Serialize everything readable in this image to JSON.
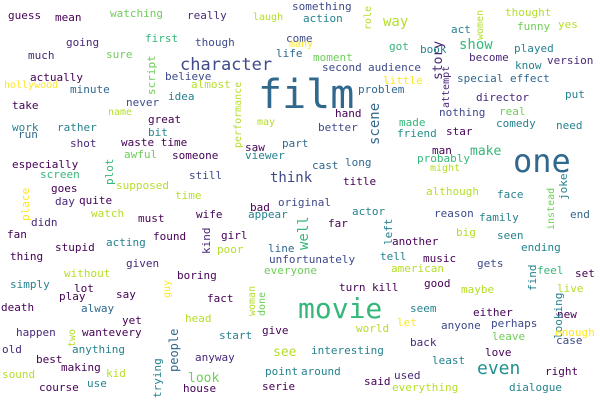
{
  "words": [
    {
      "text": "film",
      "color": "#31688e",
      "vertical": false
    },
    {
      "text": "one",
      "color": "#31688e",
      "vertical": false
    },
    {
      "text": "movie",
      "color": "#35b779",
      "vertical": false
    },
    {
      "text": "character",
      "color": "#3e4a89",
      "vertical": false
    },
    {
      "text": "even",
      "color": "#21918c",
      "vertical": false
    },
    {
      "text": "show",
      "color": "#35b779",
      "vertical": false
    },
    {
      "text": "scene",
      "color": "#31688e",
      "vertical": true
    },
    {
      "text": "story",
      "color": "#482878",
      "vertical": true
    },
    {
      "text": "way",
      "color": "#b5de2b",
      "vertical": false
    },
    {
      "text": "make",
      "color": "#35b779",
      "vertical": false
    },
    {
      "text": "think",
      "color": "#3e4a89",
      "vertical": false
    },
    {
      "text": "see",
      "color": "#b5de2b",
      "vertical": false
    },
    {
      "text": "look",
      "color": "#6ece58",
      "vertical": false
    },
    {
      "text": "well",
      "color": "#35b779",
      "vertical": true
    },
    {
      "text": "people",
      "color": "#31688e",
      "vertical": true
    },
    {
      "text": "guess",
      "color": "#440154",
      "vertical": false
    },
    {
      "text": "mean",
      "color": "#440154",
      "vertical": false
    },
    {
      "text": "watching",
      "color": "#6ece58",
      "vertical": false
    },
    {
      "text": "really",
      "color": "#482878",
      "vertical": false
    },
    {
      "text": "laugh",
      "color": "#b5de2b",
      "vertical": false
    },
    {
      "text": "something",
      "color": "#3e4a89",
      "vertical": false
    },
    {
      "text": "action",
      "color": "#26828e",
      "vertical": false
    },
    {
      "text": "role",
      "color": "#b5de2b",
      "vertical": true
    },
    {
      "text": "women",
      "color": "#b5de2b",
      "vertical": true
    },
    {
      "text": "thought",
      "color": "#b5de2b",
      "vertical": false
    },
    {
      "text": "funny",
      "color": "#6ece58",
      "vertical": false
    },
    {
      "text": "yes",
      "color": "#b5de2b",
      "vertical": false
    },
    {
      "text": "going",
      "color": "#482878",
      "vertical": false
    },
    {
      "text": "first",
      "color": "#35b779",
      "vertical": false
    },
    {
      "text": "though",
      "color": "#3e4a89",
      "vertical": false
    },
    {
      "text": "come",
      "color": "#3e4a89",
      "vertical": false
    },
    {
      "text": "many",
      "color": "#fde725",
      "vertical": false
    },
    {
      "text": "much",
      "color": "#482878",
      "vertical": false
    },
    {
      "text": "sure",
      "color": "#6ece58",
      "vertical": false
    },
    {
      "text": "life",
      "color": "#31688e",
      "vertical": false
    },
    {
      "text": "moment",
      "color": "#6ece58",
      "vertical": false
    },
    {
      "text": "got",
      "color": "#35b779",
      "vertical": false
    },
    {
      "text": "book",
      "color": "#26828e",
      "vertical": false
    },
    {
      "text": "act",
      "color": "#26828e",
      "vertical": false
    },
    {
      "text": "played",
      "color": "#26828e",
      "vertical": false
    },
    {
      "text": "become",
      "color": "#482878",
      "vertical": false
    },
    {
      "text": "version",
      "color": "#482878",
      "vertical": false
    },
    {
      "text": "script",
      "color": "#6ece58",
      "vertical": true
    },
    {
      "text": "second",
      "color": "#3e4a89",
      "vertical": false
    },
    {
      "text": "audience",
      "color": "#3e4a89",
      "vertical": false
    },
    {
      "text": "know",
      "color": "#26828e",
      "vertical": false
    },
    {
      "text": "actually",
      "color": "#440154",
      "vertical": false
    },
    {
      "text": "believe",
      "color": "#3e4a89",
      "vertical": false
    },
    {
      "text": "little",
      "color": "#fde725",
      "vertical": false
    },
    {
      "text": "attempt",
      "color": "#482878",
      "vertical": true
    },
    {
      "text": "special effect",
      "color": "#31688e",
      "vertical": false
    },
    {
      "text": "hollywood",
      "color": "#fde725",
      "vertical": false
    },
    {
      "text": "minute",
      "color": "#31688e",
      "vertical": false
    },
    {
      "text": "almost",
      "color": "#b5de2b",
      "vertical": false
    },
    {
      "text": "problem",
      "color": "#31688e",
      "vertical": false
    },
    {
      "text": "put",
      "color": "#26828e",
      "vertical": false
    },
    {
      "text": "idea",
      "color": "#26828e",
      "vertical": false
    },
    {
      "text": "director",
      "color": "#482878",
      "vertical": false
    },
    {
      "text": "take",
      "color": "#440154",
      "vertical": false
    },
    {
      "text": "never",
      "color": "#3e4a89",
      "vertical": false
    },
    {
      "text": "name",
      "color": "#b5de2b",
      "vertical": false
    },
    {
      "text": "hand",
      "color": "#440154",
      "vertical": false
    },
    {
      "text": "nothing",
      "color": "#3e4a89",
      "vertical": false
    },
    {
      "text": "real",
      "color": "#6ece58",
      "vertical": false
    },
    {
      "text": "great",
      "color": "#440154",
      "vertical": false
    },
    {
      "text": "may",
      "color": "#b5de2b",
      "vertical": false
    },
    {
      "text": "made",
      "color": "#35b779",
      "vertical": false
    },
    {
      "text": "comedy",
      "color": "#26828e",
      "vertical": false
    },
    {
      "text": "need",
      "color": "#26828e",
      "vertical": false
    },
    {
      "text": "work",
      "color": "#26828e",
      "vertical": false
    },
    {
      "text": "rather",
      "color": "#26828e",
      "vertical": false
    },
    {
      "text": "bit",
      "color": "#26828e",
      "vertical": false
    },
    {
      "text": "run",
      "color": "#31688e",
      "vertical": false
    },
    {
      "text": "better",
      "color": "#3e4a89",
      "vertical": false
    },
    {
      "text": "star",
      "color": "#440154",
      "vertical": false
    },
    {
      "text": "friend",
      "color": "#21918c",
      "vertical": false
    },
    {
      "text": "performance",
      "color": "#b5de2b",
      "vertical": true
    },
    {
      "text": "shot",
      "color": "#482878",
      "vertical": false
    },
    {
      "text": "waste time",
      "color": "#440154",
      "vertical": false
    },
    {
      "text": "part",
      "color": "#31688e",
      "vertical": false
    },
    {
      "text": "cast",
      "color": "#31688e",
      "vertical": false
    },
    {
      "text": "man",
      "color": "#440154",
      "vertical": false
    },
    {
      "text": "awful",
      "color": "#6ece58",
      "vertical": false
    },
    {
      "text": "someone",
      "color": "#440154",
      "vertical": false
    },
    {
      "text": "saw",
      "color": "#440154",
      "vertical": false
    },
    {
      "text": "long",
      "color": "#31688e",
      "vertical": false
    },
    {
      "text": "probably",
      "color": "#35b779",
      "vertical": false
    },
    {
      "text": "especially",
      "color": "#440154",
      "vertical": false
    },
    {
      "text": "viewer",
      "color": "#26828e",
      "vertical": false
    },
    {
      "text": "might",
      "color": "#b5de2b",
      "vertical": false
    },
    {
      "text": "screen",
      "color": "#35b779",
      "vertical": false
    },
    {
      "text": "plot",
      "color": "#35b779",
      "vertical": true
    },
    {
      "text": "still",
      "color": "#3e4a89",
      "vertical": false
    },
    {
      "text": "title",
      "color": "#440154",
      "vertical": false
    },
    {
      "text": "face",
      "color": "#26828e",
      "vertical": false
    },
    {
      "text": "joke",
      "color": "#26828e",
      "vertical": true
    },
    {
      "text": "goes",
      "color": "#440154",
      "vertical": false
    },
    {
      "text": "supposed",
      "color": "#b5de2b",
      "vertical": false
    },
    {
      "text": "although",
      "color": "#b5de2b",
      "vertical": false
    },
    {
      "text": "place",
      "color": "#fde725",
      "vertical": true
    },
    {
      "text": "day",
      "color": "#482878",
      "vertical": false
    },
    {
      "text": "quite",
      "color": "#440154",
      "vertical": false
    },
    {
      "text": "time",
      "color": "#b5de2b",
      "vertical": false
    },
    {
      "text": "bad",
      "color": "#440154",
      "vertical": false
    },
    {
      "text": "original",
      "color": "#3e4a89",
      "vertical": false
    },
    {
      "text": "instead",
      "color": "#6ece58",
      "vertical": true
    },
    {
      "text": "end",
      "color": "#31688e",
      "vertical": false
    },
    {
      "text": "didn",
      "color": "#482878",
      "vertical": false
    },
    {
      "text": "watch",
      "color": "#b5de2b",
      "vertical": false
    },
    {
      "text": "must",
      "color": "#440154",
      "vertical": false
    },
    {
      "text": "wife",
      "color": "#440154",
      "vertical": false
    },
    {
      "text": "appear",
      "color": "#26828e",
      "vertical": false
    },
    {
      "text": "far",
      "color": "#440154",
      "vertical": false
    },
    {
      "text": "actor",
      "color": "#26828e",
      "vertical": false
    },
    {
      "text": "reason",
      "color": "#3e4a89",
      "vertical": false
    },
    {
      "text": "family",
      "color": "#26828e",
      "vertical": false
    },
    {
      "text": "big",
      "color": "#b5de2b",
      "vertical": false
    },
    {
      "text": "fan",
      "color": "#440154",
      "vertical": false
    },
    {
      "text": "kind",
      "color": "#482878",
      "vertical": true
    },
    {
      "text": "found",
      "color": "#440154",
      "vertical": false
    },
    {
      "text": "girl",
      "color": "#440154",
      "vertical": false
    },
    {
      "text": "left",
      "color": "#26828e",
      "vertical": true
    },
    {
      "text": "another",
      "color": "#440154",
      "vertical": false
    },
    {
      "text": "seen",
      "color": "#26828e",
      "vertical": false
    },
    {
      "text": "stupid",
      "color": "#440154",
      "vertical": false
    },
    {
      "text": "acting",
      "color": "#26828e",
      "vertical": false
    },
    {
      "text": "poor",
      "color": "#b5de2b",
      "vertical": false
    },
    {
      "text": "line",
      "color": "#31688e",
      "vertical": false
    },
    {
      "text": "ending",
      "color": "#26828e",
      "vertical": false
    },
    {
      "text": "thing",
      "color": "#440154",
      "vertical": false
    },
    {
      "text": "given",
      "color": "#482878",
      "vertical": false
    },
    {
      "text": "unfortunately",
      "color": "#3e4a89",
      "vertical": false
    },
    {
      "text": "tell",
      "color": "#26828e",
      "vertical": false
    },
    {
      "text": "music",
      "color": "#440154",
      "vertical": false
    },
    {
      "text": "gets",
      "color": "#3e4a89",
      "vertical": false
    },
    {
      "text": "set",
      "color": "#440154",
      "vertical": false
    },
    {
      "text": "everyone",
      "color": "#6ece58",
      "vertical": false
    },
    {
      "text": "american",
      "color": "#b5de2b",
      "vertical": false
    },
    {
      "text": "feel",
      "color": "#35b779",
      "vertical": false
    },
    {
      "text": "without",
      "color": "#b5de2b",
      "vertical": false
    },
    {
      "text": "boring",
      "color": "#440154",
      "vertical": false
    },
    {
      "text": "simply",
      "color": "#26828e",
      "vertical": false
    },
    {
      "text": "lot",
      "color": "#440154",
      "vertical": false
    },
    {
      "text": "guy",
      "color": "#fde725",
      "vertical": true
    },
    {
      "text": "woman",
      "color": "#b5de2b",
      "vertical": true
    },
    {
      "text": "done",
      "color": "#6ece58",
      "vertical": true
    },
    {
      "text": "good",
      "color": "#440154",
      "vertical": false
    },
    {
      "text": "find",
      "color": "#26828e",
      "vertical": true
    },
    {
      "text": "live",
      "color": "#b5de2b",
      "vertical": false
    },
    {
      "text": "play",
      "color": "#440154",
      "vertical": false
    },
    {
      "text": "say",
      "color": "#440154",
      "vertical": false
    },
    {
      "text": "fact",
      "color": "#440154",
      "vertical": false
    },
    {
      "text": "turn",
      "color": "#440154",
      "vertical": false
    },
    {
      "text": "kill",
      "color": "#440154",
      "vertical": false
    },
    {
      "text": "maybe",
      "color": "#b5de2b",
      "vertical": false
    },
    {
      "text": "new",
      "color": "#440154",
      "vertical": false
    },
    {
      "text": "death",
      "color": "#440154",
      "vertical": false
    },
    {
      "text": "alway",
      "color": "#31688e",
      "vertical": false
    },
    {
      "text": "seem",
      "color": "#26828e",
      "vertical": false
    },
    {
      "text": "head",
      "color": "#b5de2b",
      "vertical": false
    },
    {
      "text": "either",
      "color": "#440154",
      "vertical": false
    },
    {
      "text": "looking",
      "color": "#26828e",
      "vertical": true
    },
    {
      "text": "yet",
      "color": "#440154",
      "vertical": false
    },
    {
      "text": "perhaps",
      "color": "#3e4a89",
      "vertical": false
    },
    {
      "text": "two",
      "color": "#b5de2b",
      "vertical": true
    },
    {
      "text": "happen",
      "color": "#482878",
      "vertical": false
    },
    {
      "text": "wantevery",
      "color": "#440154",
      "vertical": false
    },
    {
      "text": "start",
      "color": "#26828e",
      "vertical": false
    },
    {
      "text": "give",
      "color": "#440154",
      "vertical": false
    },
    {
      "text": "world",
      "color": "#b5de2b",
      "vertical": false
    },
    {
      "text": "let",
      "color": "#fde725",
      "vertical": false
    },
    {
      "text": "anyone",
      "color": "#3e4a89",
      "vertical": false
    },
    {
      "text": "leave",
      "color": "#6ece58",
      "vertical": false
    },
    {
      "text": "enough",
      "color": "#fde725",
      "vertical": false
    },
    {
      "text": "case",
      "color": "#3e4a89",
      "vertical": false
    },
    {
      "text": "back",
      "color": "#482878",
      "vertical": false
    },
    {
      "text": "old",
      "color": "#482878",
      "vertical": false
    },
    {
      "text": "anything",
      "color": "#26828e",
      "vertical": false
    },
    {
      "text": "interesting",
      "color": "#26828e",
      "vertical": false
    },
    {
      "text": "love",
      "color": "#440154",
      "vertical": false
    },
    {
      "text": "best",
      "color": "#440154",
      "vertical": false
    },
    {
      "text": "anyway",
      "color": "#482878",
      "vertical": false
    },
    {
      "text": "least",
      "color": "#26828e",
      "vertical": false
    },
    {
      "text": "making",
      "color": "#440154",
      "vertical": false
    },
    {
      "text": "point",
      "color": "#26828e",
      "vertical": false
    },
    {
      "text": "around",
      "color": "#26828e",
      "vertical": false
    },
    {
      "text": "right",
      "color": "#440154",
      "vertical": false
    },
    {
      "text": "sound",
      "color": "#b5de2b",
      "vertical": false
    },
    {
      "text": "kid",
      "color": "#b5de2b",
      "vertical": false
    },
    {
      "text": "trying",
      "color": "#26828e",
      "vertical": true
    },
    {
      "text": "used",
      "color": "#482878",
      "vertical": false
    },
    {
      "text": "course",
      "color": "#440154",
      "vertical": false
    },
    {
      "text": "use",
      "color": "#26828e",
      "vertical": false
    },
    {
      "text": "house",
      "color": "#440154",
      "vertical": false
    },
    {
      "text": "serie",
      "color": "#440154",
      "vertical": false
    },
    {
      "text": "said",
      "color": "#440154",
      "vertical": false
    },
    {
      "text": "everything",
      "color": "#b5de2b",
      "vertical": false
    },
    {
      "text": "dialogue",
      "color": "#26828e",
      "vertical": false
    }
  ]
}
